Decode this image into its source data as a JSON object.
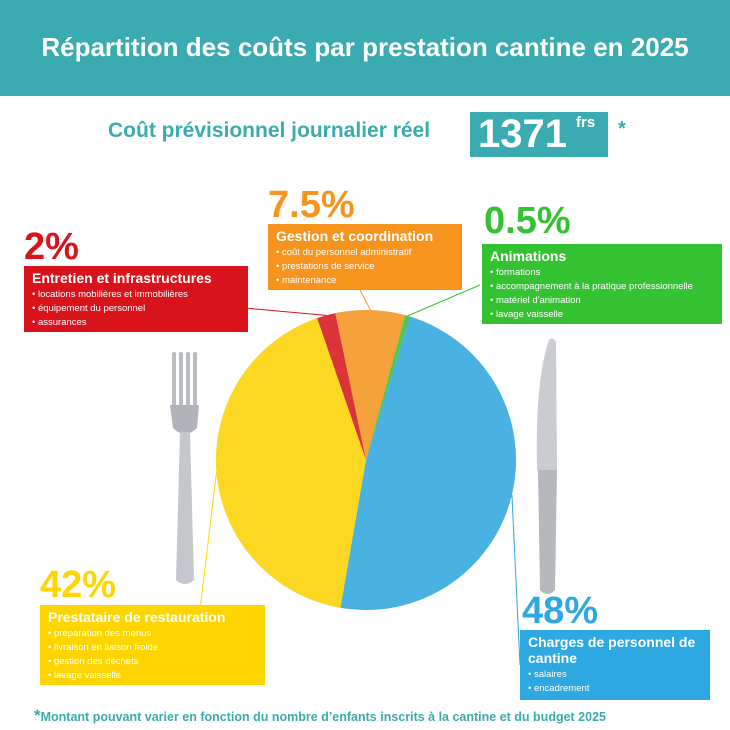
{
  "header": {
    "title": "Répartition des coûts par prestation cantine en 2025"
  },
  "cost": {
    "label": "Coût prévisionnel journalier réel",
    "value": "1371",
    "unit": "frs",
    "asterisk": "*"
  },
  "chart_data": {
    "type": "pie",
    "title": "Répartition des coûts par prestation cantine en 2025",
    "slices": [
      {
        "label": "Charges de personnel de cantine",
        "value": 48,
        "percent_label": "48%",
        "color": "#2ea8e0",
        "items": [
          "salaires",
          "encadrement"
        ]
      },
      {
        "label": "Prestataire de restauration",
        "value": 42,
        "percent_label": "42%",
        "color": "#ffd500",
        "items": [
          "préparation des menus",
          "livraison en liaison froide",
          "gestion des déchets",
          "lavage vaisselle"
        ]
      },
      {
        "label": "Entretien et infrastructures",
        "value": 2,
        "percent_label": "2%",
        "color": "#d8131b",
        "items": [
          "locations mobilières et immobilières",
          "équipement du personnel",
          "assurances"
        ]
      },
      {
        "label": "Gestion et coordination",
        "value": 7.5,
        "percent_label": "7.5%",
        "color": "#f7941d",
        "items": [
          "coût du personnel administratif",
          "prestations de service",
          "maintenance"
        ]
      },
      {
        "label": "Animations",
        "value": 0.5,
        "percent_label": "0.5%",
        "color": "#35c232",
        "items": [
          "formations",
          "accompagnement à la pratique professionnelle",
          "matériel d'animation",
          "lavage vaisselle"
        ]
      }
    ]
  },
  "footnote": {
    "star": "*",
    "text": "Montant pouvant varier en fonction du nombre d’enfants inscrits à la cantine et du  budget 2025"
  }
}
